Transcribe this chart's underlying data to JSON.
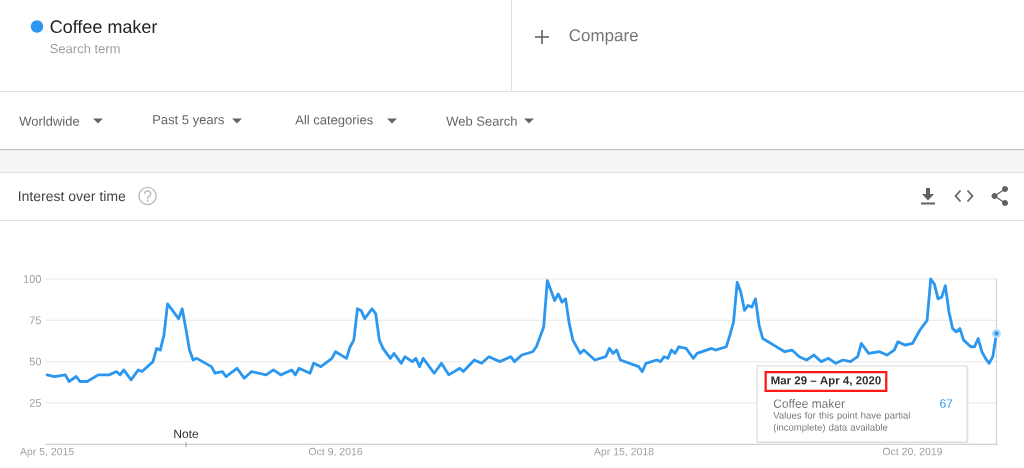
{
  "chart_data": {
    "type": "line",
    "title": "Interest over time",
    "series": [
      {
        "name": "Coffee maker",
        "color": "#2b97ef",
        "x": [
          "2015-04-05",
          "2015-04-19",
          "2015-05-10",
          "2015-05-17",
          "2015-05-31",
          "2015-06-07",
          "2015-06-21",
          "2015-07-12",
          "2015-08-02",
          "2015-08-16",
          "2015-08-23",
          "2015-08-30",
          "2015-09-13",
          "2015-09-27",
          "2015-10-04",
          "2015-10-25",
          "2015-11-01",
          "2015-11-08",
          "2015-11-15",
          "2015-11-22",
          "2015-12-13",
          "2015-12-20",
          "2015-12-27",
          "2016-01-03",
          "2016-01-10",
          "2016-01-17",
          "2016-02-14",
          "2016-02-21",
          "2016-03-06",
          "2016-03-13",
          "2016-04-03",
          "2016-04-17",
          "2016-05-01",
          "2016-05-29",
          "2016-06-12",
          "2016-06-26",
          "2016-07-17",
          "2016-07-24",
          "2016-07-31",
          "2016-08-21",
          "2016-08-28",
          "2016-09-11",
          "2016-10-02",
          "2016-10-09",
          "2016-10-30",
          "2016-11-06",
          "2016-11-13",
          "2016-11-20",
          "2016-11-27",
          "2016-12-04",
          "2016-12-18",
          "2016-12-25",
          "2017-01-01",
          "2017-01-08",
          "2017-01-22",
          "2017-01-29",
          "2017-02-12",
          "2017-02-19",
          "2017-03-05",
          "2017-03-12",
          "2017-03-19",
          "2017-03-26",
          "2017-04-16",
          "2017-04-30",
          "2017-05-14",
          "2017-06-04",
          "2017-06-11",
          "2017-07-02",
          "2017-07-16",
          "2017-07-30",
          "2017-08-20",
          "2017-09-10",
          "2017-09-17",
          "2017-10-01",
          "2017-10-22",
          "2017-10-29",
          "2017-11-12",
          "2017-11-19",
          "2017-12-03",
          "2017-12-10",
          "2017-12-17",
          "2017-12-24",
          "2017-12-31",
          "2018-01-07",
          "2018-01-21",
          "2018-01-28",
          "2018-02-18",
          "2018-03-11",
          "2018-03-18",
          "2018-03-25",
          "2018-04-01",
          "2018-04-08",
          "2018-05-13",
          "2018-05-20",
          "2018-05-27",
          "2018-06-17",
          "2018-06-24",
          "2018-07-01",
          "2018-07-08",
          "2018-07-15",
          "2018-07-22",
          "2018-07-29",
          "2018-08-12",
          "2018-08-26",
          "2018-09-02",
          "2018-09-30",
          "2018-10-07",
          "2018-10-28",
          "2018-11-04",
          "2018-11-11",
          "2018-11-18",
          "2018-11-25",
          "2018-12-02",
          "2018-12-09",
          "2018-12-16",
          "2018-12-23",
          "2018-12-30",
          "2019-01-06",
          "2019-01-27",
          "2019-02-17",
          "2019-03-03",
          "2019-03-17",
          "2019-03-31",
          "2019-04-14",
          "2019-04-28",
          "2019-05-12",
          "2019-05-26",
          "2019-06-09",
          "2019-06-23",
          "2019-07-07",
          "2019-07-14",
          "2019-07-28",
          "2019-08-18",
          "2019-09-01",
          "2019-09-15",
          "2019-09-22",
          "2019-10-06",
          "2019-10-20",
          "2019-11-03",
          "2019-11-17",
          "2019-11-24",
          "2019-12-01",
          "2019-12-08",
          "2019-12-15",
          "2019-12-22",
          "2019-12-29",
          "2020-01-05",
          "2020-01-12",
          "2020-01-19",
          "2020-01-26",
          "2020-02-09",
          "2020-02-16",
          "2020-02-23",
          "2020-03-01",
          "2020-03-08",
          "2020-03-15",
          "2020-03-22",
          "2020-03-29"
        ],
        "values": [
          42,
          41,
          42,
          38,
          41,
          38,
          38,
          42,
          42,
          44,
          42,
          45,
          39,
          45,
          44,
          50,
          58,
          57,
          66,
          85,
          76,
          82,
          70,
          57,
          51,
          52,
          47,
          43,
          44,
          41,
          46,
          40,
          44,
          42,
          45,
          42,
          45,
          42,
          46,
          43,
          49,
          47,
          52,
          56,
          52,
          59,
          63,
          82,
          81,
          76,
          82,
          79,
          63,
          58,
          52,
          55,
          49,
          53,
          50,
          52,
          47,
          52,
          43,
          49,
          42,
          46,
          44,
          51,
          49,
          53,
          50,
          53,
          50,
          54,
          56,
          59,
          71,
          99,
          87,
          91,
          86,
          88,
          73,
          63,
          55,
          57,
          51,
          53,
          58,
          55,
          57,
          51,
          47,
          44,
          49,
          51,
          50,
          53,
          52,
          57,
          55,
          59,
          58,
          52,
          55,
          58,
          57,
          59,
          66,
          74,
          98,
          92,
          81,
          84,
          83,
          88,
          72,
          64,
          60,
          56,
          57,
          53,
          51,
          54,
          50,
          52,
          49,
          51,
          50,
          53,
          61,
          55,
          56,
          54,
          57,
          62,
          60,
          61,
          69,
          75,
          100,
          97,
          88,
          89,
          96,
          80,
          70,
          68,
          70,
          63,
          59,
          59,
          64,
          56,
          52,
          49,
          53,
          67
        ]
      },
      {
        "type": "scatter",
        "color": "#2b97ef",
        "marker": "circle",
        "x": [
          "2020-03-29"
        ],
        "values": [
          67
        ]
      }
    ],
    "xlim": [
      "2015-04-01",
      "2020-04-01"
    ],
    "xticks": [
      {
        "value": "2015-04-05",
        "label": "Apr 5, 2015"
      },
      {
        "value": "2016-10-09",
        "label": "Oct 9, 2016"
      },
      {
        "value": "2018-04-15",
        "label": "Apr 15, 2018"
      },
      {
        "value": "2019-10-20",
        "label": "Oct 20, 2019"
      }
    ],
    "ylim": [
      0,
      100
    ],
    "yticks": [
      25,
      50,
      75,
      100
    ],
    "grid": "y",
    "legend": "top left",
    "ref_lines": [
      {
        "axis": "x",
        "value": "2020-03-29",
        "color": "#d0d0d0"
      }
    ],
    "annotations": [
      "Search term",
      "Compare",
      "Worldwide",
      "Past 5 years",
      "All categories",
      "Web Search",
      "Note",
      "Mar 29 – Apr 4, 2020",
      "67",
      "Values for this point have partial (incomplete) data available"
    ]
  }
}
